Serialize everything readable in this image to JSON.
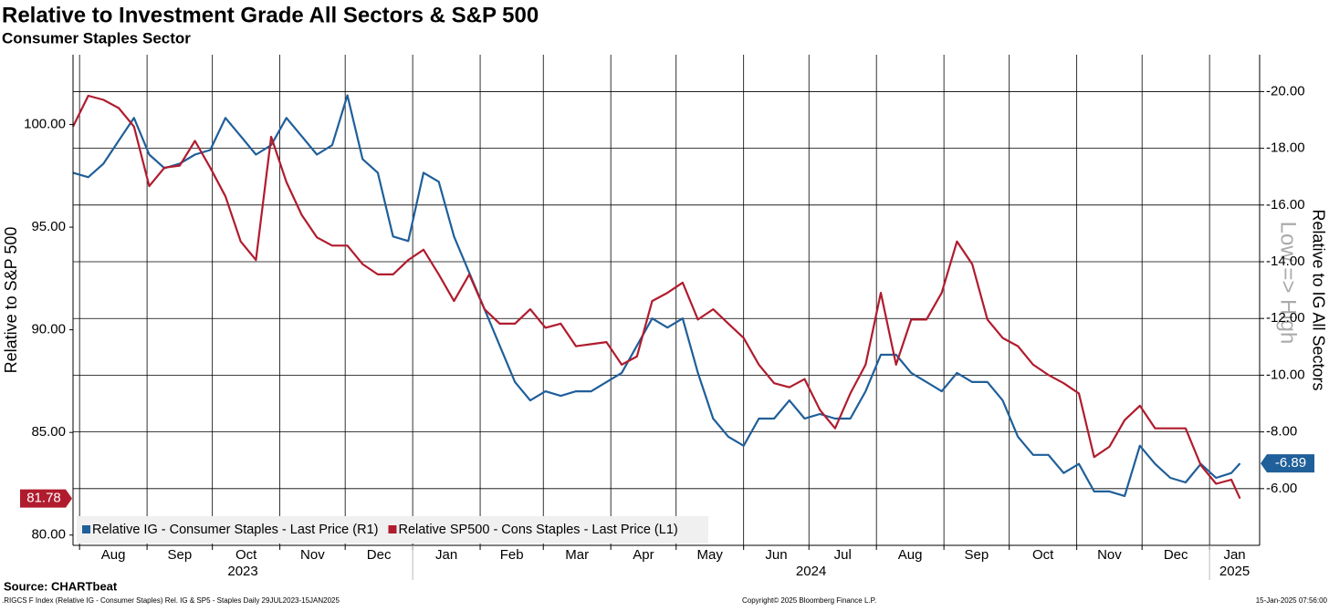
{
  "chart_data": {
    "type": "line",
    "title": "Relative to Investment Grade All Sectors & S&P 500",
    "subtitle": "Consumer Staples Sector",
    "y_label": "Relative to S&P 500",
    "y2_label": "Relative to IG All Sectors",
    "y2_annotation": "Low => High",
    "source": "Source: CHARTbeat",
    "footnote": ".RIGCS F Index (Relative IG - Consumer Staples) Rel. IG & SP5 - Staples  Daily 29JUL2023-15JAN2025",
    "copyright": "Copyright© 2025 Bloomberg Finance L.P.",
    "timestamp": "15-Jan-2025 07:56:00",
    "x": [
      "2023-07-29",
      "2023-08-05",
      "2023-08-12",
      "2023-08-19",
      "2023-08-26",
      "2023-09-02",
      "2023-09-09",
      "2023-09-16",
      "2023-09-23",
      "2023-09-30",
      "2023-10-07",
      "2023-10-14",
      "2023-10-21",
      "2023-10-28",
      "2023-11-04",
      "2023-11-11",
      "2023-11-18",
      "2023-11-25",
      "2023-12-02",
      "2023-12-09",
      "2023-12-16",
      "2023-12-23",
      "2023-12-30",
      "2024-01-06",
      "2024-01-13",
      "2024-01-20",
      "2024-01-27",
      "2024-02-03",
      "2024-02-10",
      "2024-02-17",
      "2024-02-24",
      "2024-03-02",
      "2024-03-09",
      "2024-03-16",
      "2024-03-23",
      "2024-03-30",
      "2024-04-06",
      "2024-04-13",
      "2024-04-20",
      "2024-04-27",
      "2024-05-04",
      "2024-05-11",
      "2024-05-18",
      "2024-05-25",
      "2024-06-01",
      "2024-06-08",
      "2024-06-15",
      "2024-06-22",
      "2024-06-29",
      "2024-07-06",
      "2024-07-13",
      "2024-07-20",
      "2024-07-27",
      "2024-08-03",
      "2024-08-10",
      "2024-08-17",
      "2024-08-24",
      "2024-08-31",
      "2024-09-07",
      "2024-09-14",
      "2024-09-21",
      "2024-09-28",
      "2024-10-05",
      "2024-10-12",
      "2024-10-19",
      "2024-10-26",
      "2024-11-02",
      "2024-11-09",
      "2024-11-16",
      "2024-11-23",
      "2024-11-30",
      "2024-12-07",
      "2024-12-14",
      "2024-12-21",
      "2024-12-28",
      "2025-01-04",
      "2025-01-11",
      "2025-01-15"
    ],
    "xlim": [
      "2023-07-29",
      "2025-01-24"
    ],
    "xticks": [
      {
        "value": "2023-08-01",
        "label": "Aug"
      },
      {
        "value": "2023-09-01",
        "label": "Sep"
      },
      {
        "value": "2023-10-01",
        "label": "Oct"
      },
      {
        "value": "2023-11-01",
        "label": "Nov"
      },
      {
        "value": "2023-12-01",
        "label": "Dec"
      },
      {
        "value": "2024-01-01",
        "label": "Jan"
      },
      {
        "value": "2024-02-01",
        "label": "Feb"
      },
      {
        "value": "2024-03-01",
        "label": "Mar"
      },
      {
        "value": "2024-04-01",
        "label": "Apr"
      },
      {
        "value": "2024-05-01",
        "label": "May"
      },
      {
        "value": "2024-06-01",
        "label": "Jun"
      },
      {
        "value": "2024-07-01",
        "label": "Jul"
      },
      {
        "value": "2024-08-01",
        "label": "Aug"
      },
      {
        "value": "2024-09-01",
        "label": "Sep"
      },
      {
        "value": "2024-10-01",
        "label": "Oct"
      },
      {
        "value": "2024-11-01",
        "label": "Nov"
      },
      {
        "value": "2024-12-01",
        "label": "Dec"
      },
      {
        "value": "2025-01-01",
        "label": "Jan"
      }
    ],
    "year_ticks": [
      {
        "value": "2023-01-01",
        "label": "2023"
      },
      {
        "value": "2024-01-01",
        "label": "2024"
      },
      {
        "value": "2025-01-01",
        "label": "2025"
      }
    ],
    "ylim": [
      79.5,
      103.4
    ],
    "yticks": [
      {
        "value": 80,
        "label": "80.00"
      },
      {
        "value": 85,
        "label": "85.00"
      },
      {
        "value": 90,
        "label": "90.00"
      },
      {
        "value": 95,
        "label": "95.00"
      },
      {
        "value": 100,
        "label": "100.00"
      }
    ],
    "y2lim": [
      -4.0,
      -21.3
    ],
    "y2ticks": [
      {
        "value": -20,
        "label": "-20.00"
      },
      {
        "value": -18,
        "label": "-18.00"
      },
      {
        "value": -16,
        "label": "-16.00"
      },
      {
        "value": -14,
        "label": "-14.00"
      },
      {
        "value": -12,
        "label": "-12.00"
      },
      {
        "value": -10,
        "label": "-10.00"
      },
      {
        "value": -8,
        "label": "-8.00"
      },
      {
        "value": -6,
        "label": "-6.00"
      }
    ],
    "grid": "y2",
    "legend": "bottom-left",
    "series": [
      {
        "name": "Relative IG - Consumer Staples - Last Price (R1)",
        "color": "#1f5f9a",
        "axis": "y2",
        "values": [
          -17.14,
          -16.98,
          -17.46,
          -18.27,
          -19.07,
          -17.78,
          -17.3,
          -17.46,
          -17.78,
          -17.94,
          -19.07,
          -18.43,
          -17.78,
          -18.11,
          -19.07,
          -18.43,
          -17.78,
          -18.11,
          -19.87,
          -17.62,
          -17.14,
          -14.89,
          -14.73,
          -17.14,
          -16.82,
          -14.89,
          -13.61,
          -12.33,
          -11.04,
          -9.76,
          -9.11,
          -9.43,
          -9.27,
          -9.43,
          -9.43,
          -9.76,
          -10.08,
          -11.04,
          -12.0,
          -11.68,
          -12.0,
          -10.08,
          -8.47,
          -7.83,
          -7.51,
          -8.47,
          -8.47,
          -9.11,
          -8.47,
          -8.63,
          -8.47,
          -8.47,
          -9.43,
          -10.72,
          -10.72,
          -10.08,
          -9.76,
          -9.43,
          -10.08,
          -9.76,
          -9.76,
          -9.11,
          -7.83,
          -7.19,
          -7.19,
          -6.55,
          -6.87,
          -5.9,
          -5.9,
          -5.74,
          -7.51,
          -6.87,
          -6.38,
          -6.22,
          -6.87,
          -6.38,
          -6.55,
          -6.89
        ]
      },
      {
        "name": "Relative SP500 - Cons Staples - Last Price (L1)",
        "color": "#b01c2e",
        "axis": "y",
        "values": [
          99.9,
          101.4,
          101.2,
          100.8,
          99.9,
          97.0,
          97.9,
          98.0,
          99.2,
          97.9,
          96.5,
          94.3,
          93.4,
          99.4,
          97.2,
          95.6,
          94.5,
          94.1,
          94.1,
          93.2,
          92.7,
          92.7,
          93.4,
          93.9,
          92.7,
          91.4,
          92.7,
          91.0,
          90.3,
          90.3,
          91.0,
          90.1,
          90.3,
          89.2,
          89.3,
          89.4,
          88.3,
          88.7,
          91.4,
          91.8,
          92.3,
          90.5,
          91.0,
          90.3,
          89.6,
          88.3,
          87.4,
          87.2,
          87.6,
          86.1,
          85.2,
          86.9,
          88.3,
          91.8,
          88.3,
          90.5,
          90.5,
          91.8,
          94.3,
          93.2,
          90.5,
          89.6,
          89.2,
          88.3,
          87.8,
          87.4,
          86.9,
          83.8,
          84.3,
          85.6,
          86.3,
          85.2,
          85.2,
          85.2,
          83.4,
          82.5,
          82.7,
          81.78
        ]
      }
    ]
  }
}
